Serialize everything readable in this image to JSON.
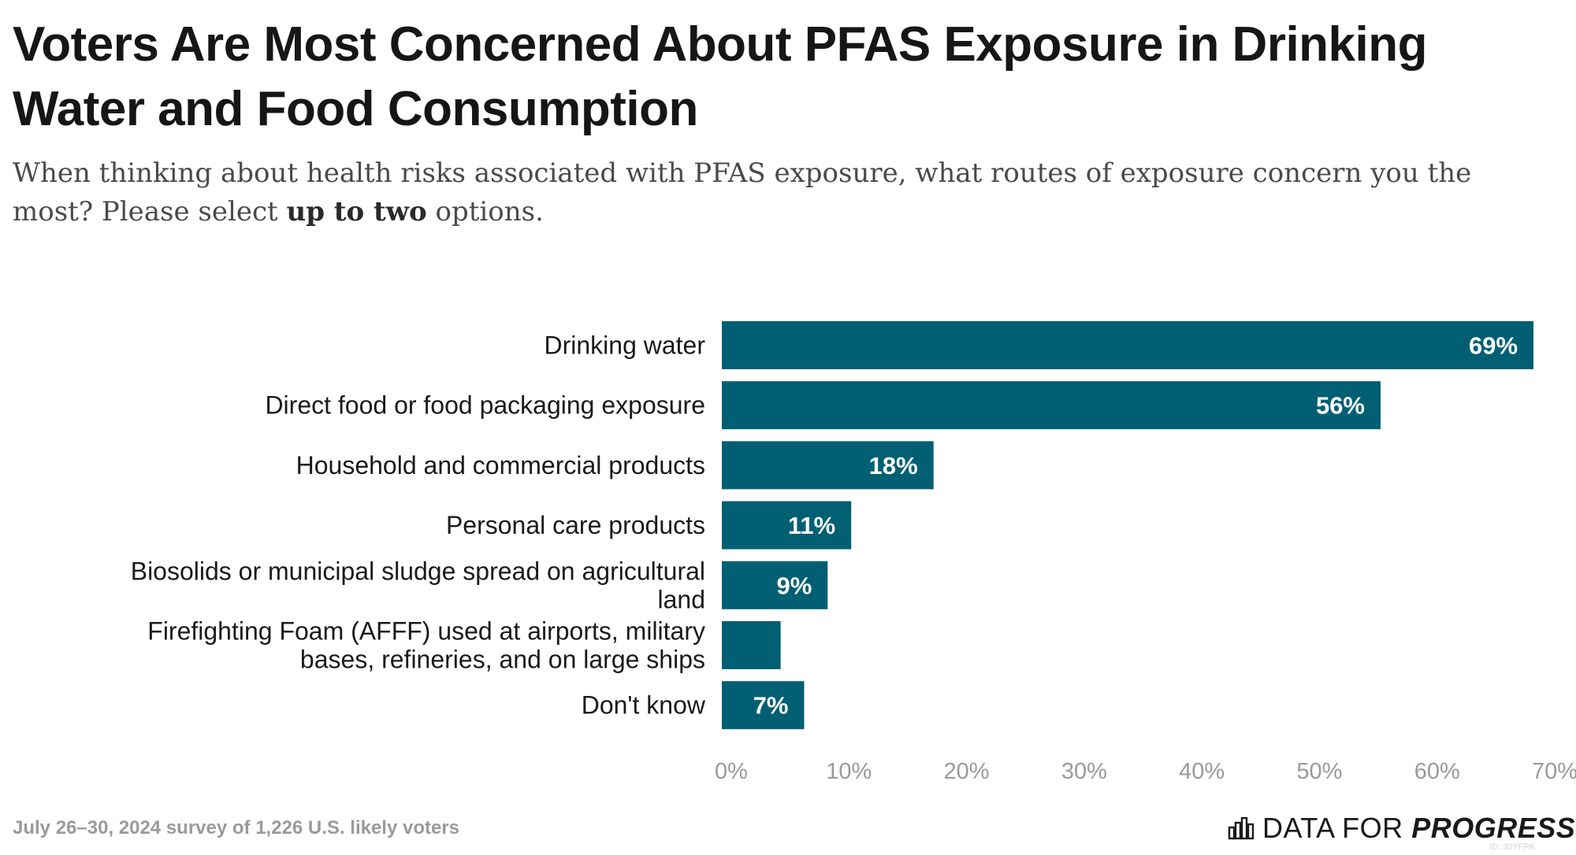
{
  "title": "Voters Are Most Concerned About PFAS Exposure in Drinking Water and Food Consumption",
  "subtitle": {
    "text_before": "When thinking about health risks associated with PFAS exposure, what routes of exposure concern you the most? Please select ",
    "text_bold": "up to two",
    "text_after": " options."
  },
  "footer": {
    "source": "July 26–30, 2024 survey of 1,226 U.S. likely voters",
    "logo_regular": "DATA FOR ",
    "logo_bold": "PROGRESS",
    "id": "ID: 32YFRK"
  },
  "colors": {
    "bar": "#005F73",
    "bar_label": "#ffffff",
    "tick": "#9a9a9a",
    "category": "#1a1a1a"
  },
  "chart_data": {
    "type": "bar",
    "orientation": "horizontal",
    "categories": [
      [
        "Drinking water"
      ],
      [
        "Direct food or food packaging exposure"
      ],
      [
        "Household and commercial products"
      ],
      [
        "Personal care products"
      ],
      [
        "Biosolids or municipal sludge spread on agricultural",
        "land"
      ],
      [
        "Firefighting Foam (AFFF) used at airports, military",
        "bases, refineries, and on large ships"
      ],
      [
        "Don't know"
      ]
    ],
    "values": [
      69,
      56,
      18,
      11,
      9,
      5,
      7
    ],
    "data_labels": [
      "69%",
      "56%",
      "18%",
      "11%",
      "9%",
      "",
      "7%"
    ],
    "xlim": [
      0,
      70
    ],
    "xticks": [
      0,
      10,
      20,
      30,
      40,
      50,
      60,
      70
    ],
    "xtick_labels": [
      "0%",
      "10%",
      "20%",
      "30%",
      "40%",
      "50%",
      "60%",
      "70%"
    ],
    "grid": false,
    "legend": "none"
  }
}
